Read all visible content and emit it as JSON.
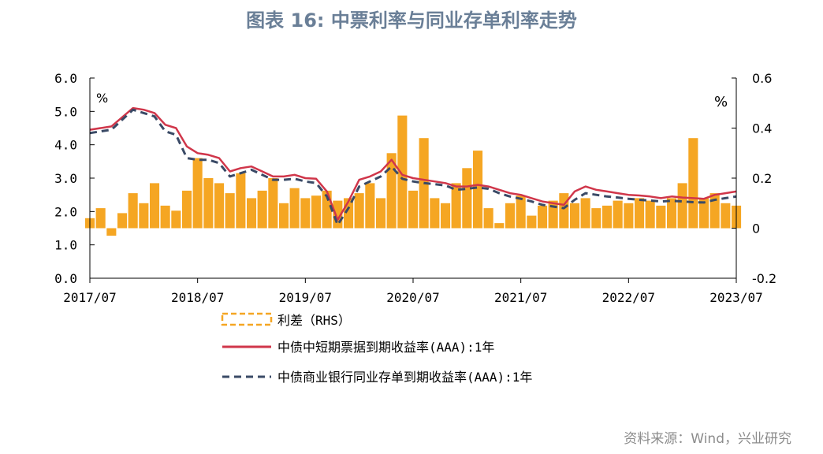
{
  "chart_data": {
    "type": "line",
    "title": "图表 16: 中票利率与同业存单利率走势",
    "left_unit": "%",
    "right_unit": "%",
    "ylim_left": [
      0,
      6
    ],
    "ylim_right": [
      -0.2,
      0.6
    ],
    "yticks_left": [
      "0.0",
      "1.0",
      "2.0",
      "3.0",
      "4.0",
      "5.0",
      "6.0"
    ],
    "yticks_right": [
      "-0.2",
      "0",
      "0.2",
      "0.4",
      "0.6"
    ],
    "xticks": [
      "2017/07",
      "2018/07",
      "2019/07",
      "2020/07",
      "2021/07",
      "2022/07",
      "2023/07"
    ],
    "x_range": [
      2017.5,
      2023.5
    ],
    "series": [
      {
        "name": "利差（RHS）",
        "axis": "right",
        "style": "bar",
        "color": "#F5A623",
        "x": [
          2017.5,
          2017.6,
          2017.7,
          2017.8,
          2017.9,
          2018.0,
          2018.1,
          2018.2,
          2018.3,
          2018.4,
          2018.5,
          2018.6,
          2018.7,
          2018.8,
          2018.9,
          2019.0,
          2019.1,
          2019.2,
          2019.3,
          2019.4,
          2019.5,
          2019.6,
          2019.7,
          2019.8,
          2019.9,
          2020.0,
          2020.1,
          2020.2,
          2020.3,
          2020.4,
          2020.5,
          2020.6,
          2020.7,
          2020.8,
          2020.9,
          2021.0,
          2021.1,
          2021.2,
          2021.3,
          2021.4,
          2021.5,
          2021.6,
          2021.7,
          2021.8,
          2021.9,
          2022.0,
          2022.1,
          2022.2,
          2022.3,
          2022.4,
          2022.5,
          2022.6,
          2022.7,
          2022.8,
          2022.9,
          2023.0,
          2023.1,
          2023.2,
          2023.3,
          2023.4,
          2023.5
        ],
        "values": [
          0.04,
          0.08,
          -0.03,
          0.06,
          0.14,
          0.1,
          0.18,
          0.09,
          0.07,
          0.15,
          0.28,
          0.2,
          0.18,
          0.14,
          0.22,
          0.12,
          0.15,
          0.2,
          0.1,
          0.16,
          0.12,
          0.13,
          0.15,
          0.11,
          0.12,
          0.14,
          0.18,
          0.12,
          0.3,
          0.45,
          0.15,
          0.36,
          0.12,
          0.1,
          0.18,
          0.24,
          0.31,
          0.08,
          0.02,
          0.1,
          0.13,
          0.05,
          0.09,
          0.11,
          0.14,
          0.1,
          0.12,
          0.08,
          0.09,
          0.11,
          0.1,
          0.12,
          0.11,
          0.09,
          0.12,
          0.18,
          0.36,
          0.12,
          0.14,
          0.1,
          0.09
        ]
      },
      {
        "name": "中债中短期票据到期收益率(AAA):1年",
        "axis": "left",
        "style": "line",
        "color": "#D0364A",
        "x": [
          2017.5,
          2017.7,
          2017.9,
          2018.0,
          2018.1,
          2018.2,
          2018.3,
          2018.4,
          2018.5,
          2018.6,
          2018.7,
          2018.8,
          2018.9,
          2019.0,
          2019.1,
          2019.2,
          2019.3,
          2019.4,
          2019.5,
          2019.6,
          2019.7,
          2019.8,
          2019.9,
          2020.0,
          2020.1,
          2020.2,
          2020.3,
          2020.4,
          2020.5,
          2020.6,
          2020.7,
          2020.8,
          2020.9,
          2021.0,
          2021.1,
          2021.2,
          2021.3,
          2021.4,
          2021.5,
          2021.6,
          2021.7,
          2021.8,
          2021.9,
          2022.0,
          2022.1,
          2022.2,
          2022.3,
          2022.4,
          2022.5,
          2022.6,
          2022.7,
          2022.8,
          2022.9,
          2023.0,
          2023.1,
          2023.2,
          2023.3,
          2023.4,
          2023.5
        ],
        "values": [
          4.45,
          4.55,
          5.1,
          5.05,
          4.95,
          4.6,
          4.5,
          3.95,
          3.75,
          3.7,
          3.6,
          3.2,
          3.3,
          3.35,
          3.2,
          3.05,
          3.05,
          3.1,
          3.0,
          2.98,
          2.6,
          1.75,
          2.3,
          2.95,
          3.05,
          3.2,
          3.55,
          3.1,
          3.0,
          2.95,
          2.9,
          2.85,
          2.75,
          2.75,
          2.8,
          2.75,
          2.65,
          2.55,
          2.5,
          2.4,
          2.3,
          2.25,
          2.2,
          2.6,
          2.75,
          2.65,
          2.6,
          2.55,
          2.5,
          2.48,
          2.45,
          2.4,
          2.45,
          2.42,
          2.4,
          2.38,
          2.5,
          2.55,
          2.6
        ]
      },
      {
        "name": "中债商业银行同业存单到期收益率(AAA):1年",
        "axis": "left",
        "style": "dashed",
        "color": "#3A4A66",
        "x": [
          2017.5,
          2017.7,
          2017.9,
          2018.0,
          2018.1,
          2018.2,
          2018.3,
          2018.4,
          2018.5,
          2018.6,
          2018.7,
          2018.8,
          2018.9,
          2019.0,
          2019.1,
          2019.2,
          2019.3,
          2019.4,
          2019.5,
          2019.6,
          2019.7,
          2019.8,
          2019.9,
          2020.0,
          2020.1,
          2020.2,
          2020.3,
          2020.4,
          2020.5,
          2020.6,
          2020.7,
          2020.8,
          2020.9,
          2021.0,
          2021.1,
          2021.2,
          2021.3,
          2021.4,
          2021.5,
          2021.6,
          2021.7,
          2021.8,
          2021.9,
          2022.0,
          2022.1,
          2022.2,
          2022.3,
          2022.4,
          2022.5,
          2022.6,
          2022.7,
          2022.8,
          2022.9,
          2023.0,
          2023.1,
          2023.2,
          2023.3,
          2023.4,
          2023.5
        ],
        "values": [
          4.35,
          4.45,
          5.05,
          4.95,
          4.85,
          4.4,
          4.3,
          3.6,
          3.55,
          3.55,
          3.45,
          3.05,
          3.15,
          3.25,
          3.1,
          2.95,
          2.95,
          2.98,
          2.9,
          2.85,
          2.45,
          1.6,
          2.1,
          2.75,
          2.9,
          3.05,
          3.35,
          2.98,
          2.9,
          2.85,
          2.82,
          2.78,
          2.65,
          2.68,
          2.72,
          2.68,
          2.55,
          2.45,
          2.38,
          2.3,
          2.2,
          2.15,
          2.1,
          2.35,
          2.55,
          2.5,
          2.45,
          2.42,
          2.38,
          2.35,
          2.33,
          2.3,
          2.32,
          2.3,
          2.28,
          2.27,
          2.35,
          2.4,
          2.45
        ]
      }
    ],
    "legend": [
      {
        "label": "利差（RHS）",
        "style": "bar"
      },
      {
        "label": "中债中短期票据到期收益率(AAA):1年",
        "style": "line"
      },
      {
        "label": "中债商业银行同业存单到期收益率(AAA):1年",
        "style": "dashed"
      }
    ]
  },
  "source": "资料来源：Wind，兴业研究"
}
